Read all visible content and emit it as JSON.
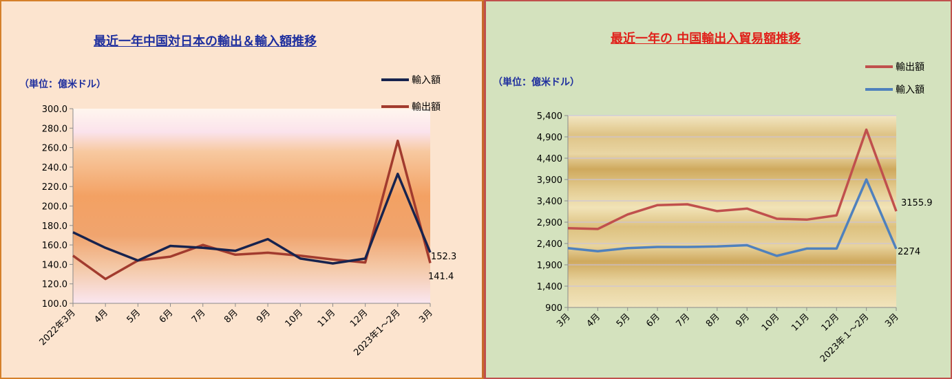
{
  "left": {
    "title": "最近一年中国対日本の輸出＆輸入額推移",
    "unit": "（単位：億米ドル）",
    "colors": {
      "title": "#1f2f9e",
      "unit": "#1f2f9e",
      "import": "#17234e",
      "export": "#a23b2e",
      "export_label": "#b0302a"
    },
    "legend": [
      {
        "name": "輸入額",
        "color": "#17234e"
      },
      {
        "name": "輸出額",
        "color": "#a23b2e"
      }
    ],
    "chart_data": {
      "type": "line",
      "categories": [
        "2022年3月",
        "4月",
        "5月",
        "6月",
        "7月",
        "8月",
        "9月",
        "10月",
        "11月",
        "12月",
        "2023年1～2月",
        "3月"
      ],
      "series": [
        {
          "name": "輸入額",
          "values": [
            173,
            157,
            144,
            159,
            157,
            154,
            166,
            146,
            141,
            146,
            233,
            152.3
          ]
        },
        {
          "name": "輸出額",
          "values": [
            149,
            125,
            144,
            148,
            160,
            150,
            152,
            149,
            145,
            142,
            267,
            141.4
          ]
        }
      ],
      "yticks": [
        "300.0",
        "280.0",
        "260.0",
        "240.0",
        "220.0",
        "200.0",
        "180.0",
        "160.0",
        "140.0",
        "120.0",
        "100.0"
      ],
      "ylim": [
        100,
        300
      ],
      "end_labels": {
        "import": "152.3",
        "export": "141.4"
      }
    }
  },
  "right": {
    "title": "最近一年の 中国輸出入貿易額推移",
    "unit": "（単位：億米ドル）",
    "colors": {
      "title": "#e0201a",
      "unit": "#1f2f9e",
      "export": "#c0504d",
      "import": "#4f81bd",
      "export_label": "#8b2a22",
      "import_label": "#1e2e40"
    },
    "legend": [
      {
        "name": "輸出額",
        "color": "#c0504d"
      },
      {
        "name": "輸入額",
        "color": "#4f81bd"
      }
    ],
    "chart_data": {
      "type": "line",
      "categories": [
        "3月",
        "4月",
        "5月",
        "6月",
        "7月",
        "8月",
        "9月",
        "10月",
        "11月",
        "12月",
        "2023年１～2月",
        "3月"
      ],
      "series": [
        {
          "name": "輸出額",
          "values": [
            2760,
            2740,
            3080,
            3300,
            3320,
            3160,
            3220,
            2980,
            2960,
            3060,
            5070,
            3155.9
          ]
        },
        {
          "name": "輸入額",
          "values": [
            2290,
            2220,
            2290,
            2320,
            2320,
            2330,
            2360,
            2110,
            2280,
            2280,
            3900,
            2274
          ]
        }
      ],
      "yticks": [
        "5,400",
        "4,900",
        "4,400",
        "3,900",
        "3,400",
        "2,900",
        "2,400",
        "1,900",
        "1,400",
        "900"
      ],
      "ylim": [
        900,
        5400
      ],
      "end_labels": {
        "export": "3155.9",
        "import": "2274"
      }
    }
  }
}
